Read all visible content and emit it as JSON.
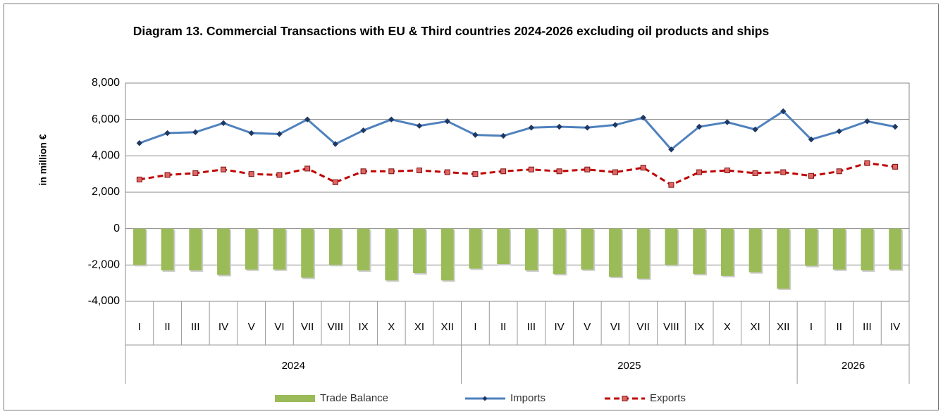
{
  "chart_data": {
    "type": "combo",
    "title": "Diagram 13. Commercial Transactions with EU & Third countries 2024-2026  excluding oil products and ships",
    "ylabel": "in million  €",
    "categories": [
      "I",
      "II",
      "III",
      "IV",
      "V",
      "VI",
      "VII",
      "VIII",
      "IX",
      "X",
      "XI",
      "XII",
      "I",
      "II",
      "III",
      "IV",
      "V",
      "VI",
      "VII",
      "VIII",
      "IX",
      "X",
      "XI",
      "XII",
      "I",
      "II",
      "III",
      "IV"
    ],
    "category_years": [
      "2024",
      "2024",
      "2024",
      "2024",
      "2024",
      "2024",
      "2024",
      "2024",
      "2024",
      "2024",
      "2024",
      "2024",
      "2025",
      "2025",
      "2025",
      "2025",
      "2025",
      "2025",
      "2025",
      "2025",
      "2025",
      "2025",
      "2025",
      "2025",
      "2026",
      "2026",
      "2026",
      "2026"
    ],
    "series": [
      {
        "name": "Trade Balance",
        "type": "bar",
        "color": "#9bbb59",
        "values": [
          -2000,
          -2300,
          -2300,
          -2550,
          -2250,
          -2250,
          -2700,
          -2000,
          -2300,
          -2850,
          -2450,
          -2850,
          -2200,
          -1950,
          -2300,
          -2500,
          -2250,
          -2650,
          -2750,
          -2000,
          -2500,
          -2600,
          -2400,
          -3300,
          -2050,
          -2250,
          -2300,
          -2250
        ]
      },
      {
        "name": "Imports",
        "type": "line",
        "color": "#4f81bd",
        "values": [
          4700,
          5250,
          5300,
          5800,
          5250,
          5200,
          6000,
          4650,
          5400,
          6000,
          5650,
          5900,
          5150,
          5100,
          5550,
          5600,
          5550,
          5700,
          6100,
          4350,
          5600,
          5850,
          5450,
          6450,
          4900,
          5350,
          5900,
          5600
        ]
      },
      {
        "name": "Exports",
        "type": "line",
        "color": "#c00000",
        "values": [
          2700,
          2950,
          3050,
          3250,
          3000,
          2950,
          3300,
          2550,
          3150,
          3150,
          3200,
          3100,
          3000,
          3150,
          3250,
          3150,
          3250,
          3100,
          3350,
          2400,
          3100,
          3200,
          3050,
          3100,
          2900,
          3150,
          3600,
          3400
        ]
      }
    ],
    "ylim": [
      -4000,
      8000
    ],
    "yticks": [
      {
        "value": -4000,
        "label": "-4,000"
      },
      {
        "value": -2000,
        "label": "-2,000"
      },
      0,
      {
        "value": 2000,
        "label": "2,000"
      },
      {
        "value": 4000,
        "label": "4,000"
      },
      {
        "value": 6000,
        "label": "6,000"
      },
      {
        "value": 8000,
        "label": "8,000"
      }
    ],
    "grid": true,
    "legend": "bottom"
  }
}
